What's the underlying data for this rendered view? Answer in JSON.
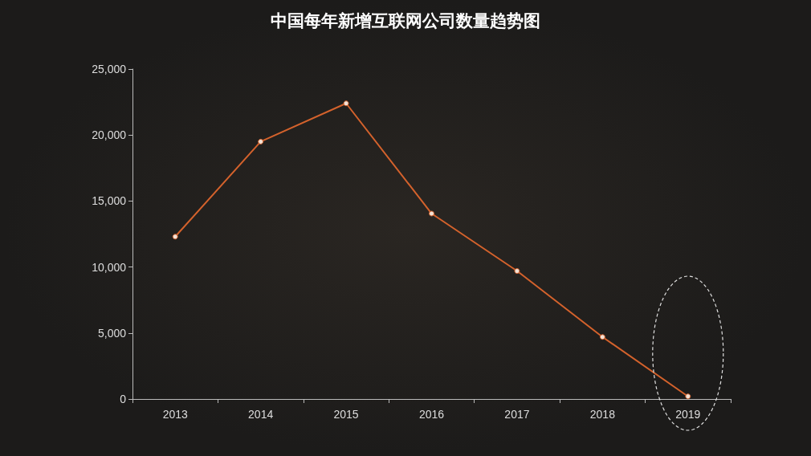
{
  "chart_data": {
    "type": "line",
    "title": "中国每年新增互联网公司数量趋势图",
    "categories": [
      "2013",
      "2014",
      "2015",
      "2016",
      "2017",
      "2018",
      "2019"
    ],
    "series": [
      {
        "color": "#d4622c",
        "values": [
          12300,
          19500,
          22400,
          14050,
          9700,
          4700,
          200
        ]
      }
    ],
    "ylim": [
      0,
      25000
    ],
    "yticks": [
      0,
      {
        "value": 5000,
        "label": "5,000"
      },
      {
        "value": 10000,
        "label": "10,000"
      },
      {
        "value": 15000,
        "label": "15,000"
      },
      {
        "value": 20000,
        "label": "20,000"
      },
      {
        "value": 25000,
        "label": "25,000"
      }
    ],
    "grid": false,
    "marker": "circle",
    "line_style": "solid"
  }
}
